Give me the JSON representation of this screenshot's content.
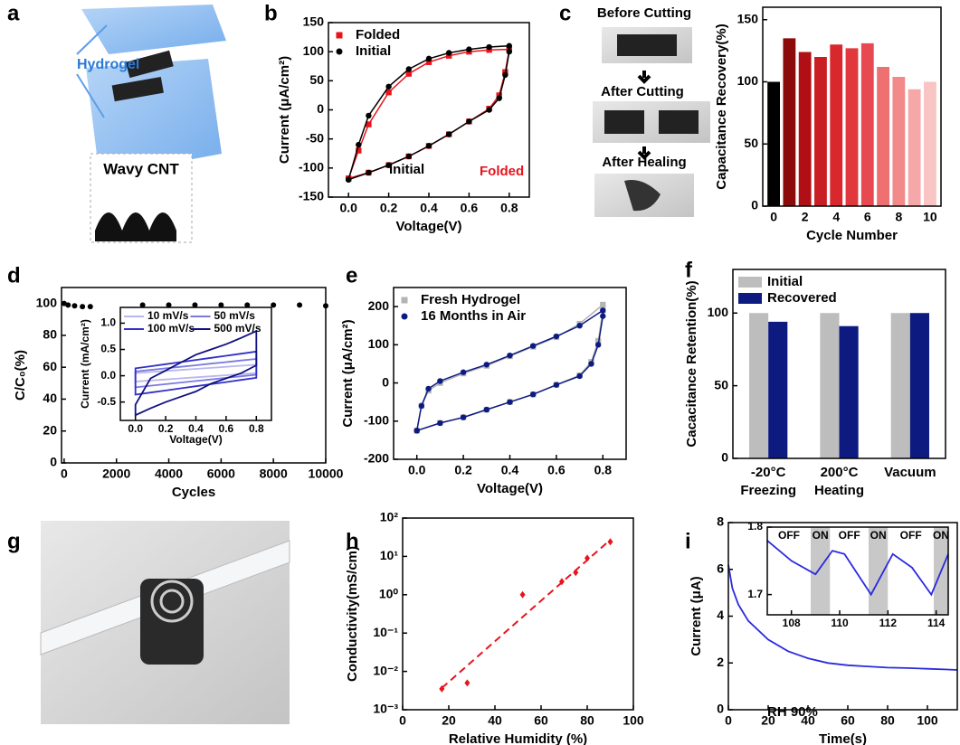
{
  "illustrations": {
    "a": {
      "label": "a",
      "texts": [
        "Hydrogel",
        "Wavy CNT"
      ]
    },
    "c": {
      "texts": [
        "Before Cutting",
        "After Cutting",
        "After Healing"
      ]
    },
    "g": {
      "label": "g"
    }
  },
  "chart_data": [
    {
      "type": "line",
      "label": "b",
      "xlabel": "Voltage(V)",
      "ylabel": "Current (μA/cm²)",
      "xlim": [
        -0.1,
        0.9
      ],
      "ylim": [
        -150,
        150
      ],
      "xticks": [
        {
          "value": 0,
          "label": "0.0"
        },
        0.2,
        0.4,
        0.6,
        0.8
      ],
      "yticks": [
        -150,
        -100,
        -50,
        0,
        50,
        100,
        150
      ],
      "legend": "upper left",
      "series": [
        {
          "name": "Folded",
          "color": "#e8141c",
          "marker": "square",
          "x": [
            0,
            0.05,
            0.1,
            0.2,
            0.3,
            0.4,
            0.5,
            0.6,
            0.7,
            0.8,
            0.8,
            0.78,
            0.75,
            0.7,
            0.6,
            0.5,
            0.4,
            0.3,
            0.2,
            0.1,
            0
          ],
          "values": [
            -118,
            -70,
            -25,
            30,
            62,
            82,
            93,
            100,
            103,
            104,
            104,
            65,
            25,
            2,
            -20,
            -42,
            -62,
            -80,
            -95,
            -108,
            -118
          ]
        },
        {
          "name": "Initial",
          "color": "#000000",
          "marker": "circle",
          "x": [
            0,
            0.05,
            0.1,
            0.2,
            0.3,
            0.4,
            0.5,
            0.6,
            0.7,
            0.8,
            0.8,
            0.78,
            0.75,
            0.7,
            0.6,
            0.5,
            0.4,
            0.3,
            0.2,
            0.1,
            0
          ],
          "values": [
            -120,
            -60,
            -10,
            40,
            70,
            88,
            98,
            104,
            108,
            110,
            100,
            60,
            20,
            0,
            -20,
            -42,
            -62,
            -80,
            -95,
            -108,
            -120
          ]
        }
      ],
      "annotations": [
        {
          "text": "Initial",
          "color": "#000000"
        },
        {
          "text": "Folded",
          "color": "#e8141c"
        }
      ]
    },
    {
      "type": "bar",
      "label": "c",
      "xlabel": "Cycle Number",
      "ylabel": "Capacitance Recovery(%)",
      "xlim": [
        -0.7,
        10.7
      ],
      "ylim": [
        0,
        160
      ],
      "xticks": [
        0,
        2,
        4,
        6,
        8,
        10
      ],
      "yticks": [
        0,
        50,
        100,
        150
      ],
      "x": [
        0,
        1,
        2,
        3,
        4,
        5,
        6,
        7,
        8,
        9,
        10
      ],
      "values": [
        100,
        135,
        124,
        120,
        130,
        127,
        131,
        112,
        104,
        94,
        100
      ],
      "colors": [
        "#000000",
        "#8b0a0a",
        "#b01015",
        "#c81e24",
        "#d8282e",
        "#e0383c",
        "#e84850",
        "#ee7070",
        "#f28a8a",
        "#f6a8a8",
        "#f9c4c4"
      ]
    },
    {
      "type": "scatter",
      "label": "d",
      "xlabel": "Cycles",
      "ylabel": "C/C₀(%)",
      "xlim": [
        -100,
        10000
      ],
      "ylim": [
        0,
        110
      ],
      "xticks": [
        0,
        2000,
        4000,
        6000,
        8000,
        10000
      ],
      "yticks": [
        0,
        20,
        40,
        60,
        80,
        100
      ],
      "series": [
        {
          "color": "#000000",
          "marker": "circle",
          "x": [
            0,
            150,
            400,
            700,
            1000,
            3000,
            4000,
            5000,
            6000,
            7000,
            8000,
            9000,
            10000
          ],
          "values": [
            100,
            99,
            98.5,
            98,
            98,
            99,
            99,
            99,
            99,
            99,
            99,
            99,
            98.5
          ]
        }
      ]
    },
    {
      "type": "line",
      "xlabel": "Voltage(V)",
      "ylabel": "Current (mA/cm²)",
      "closed": true,
      "xlim": [
        -0.1,
        0.9
      ],
      "ylim": [
        -0.85,
        1.3
      ],
      "xticks": [
        {
          "value": 0,
          "label": "0.0"
        },
        0.2,
        0.4,
        0.6,
        0.8
      ],
      "yticks": [
        -0.5,
        {
          "value": 0,
          "label": "0.0"
        },
        0.5,
        {
          "value": 1,
          "label": "1.0"
        }
      ],
      "legend": "top",
      "legend_columns": 2,
      "series": [
        {
          "name": "10 mV/s",
          "color": "#b8b8ee",
          "x": [
            0,
            0.1,
            0.2,
            0.3,
            0.4,
            0.5,
            0.6,
            0.7,
            0.8,
            0.8,
            0.7,
            0.6,
            0.5,
            0.4,
            0.3,
            0.2,
            0.1,
            0
          ],
          "values": [
            0.05,
            0.07,
            0.09,
            0.11,
            0.13,
            0.15,
            0.17,
            0.19,
            0.21,
            0.05,
            0.03,
            0.01,
            -0.01,
            -0.03,
            -0.05,
            -0.07,
            -0.09,
            -0.11
          ]
        },
        {
          "name": "50 mV/s",
          "color": "#7a7ae0",
          "x": [
            0,
            0.1,
            0.2,
            0.3,
            0.4,
            0.5,
            0.6,
            0.7,
            0.8,
            0.8,
            0.7,
            0.6,
            0.5,
            0.4,
            0.3,
            0.2,
            0.1,
            0
          ],
          "values": [
            0.08,
            0.11,
            0.14,
            0.17,
            0.2,
            0.23,
            0.26,
            0.29,
            0.32,
            0.02,
            -0.01,
            -0.04,
            -0.07,
            -0.1,
            -0.13,
            -0.16,
            -0.19,
            -0.22
          ]
        },
        {
          "name": "100 mV/s",
          "color": "#3030c8",
          "x": [
            0,
            0.1,
            0.2,
            0.3,
            0.4,
            0.5,
            0.6,
            0.7,
            0.8,
            0.8,
            0.7,
            0.6,
            0.5,
            0.4,
            0.3,
            0.2,
            0.1,
            0
          ],
          "values": [
            0.14,
            0.18,
            0.22,
            0.26,
            0.3,
            0.34,
            0.38,
            0.42,
            0.46,
            -0.04,
            -0.08,
            -0.12,
            -0.16,
            -0.2,
            -0.24,
            -0.28,
            -0.32,
            -0.36
          ]
        },
        {
          "name": "500 mV/s",
          "color": "#101080",
          "x": [
            0,
            0.1,
            0.2,
            0.3,
            0.4,
            0.5,
            0.6,
            0.7,
            0.8,
            0.8,
            0.7,
            0.6,
            0.5,
            0.4,
            0.3,
            0.2,
            0.1,
            0
          ],
          "values": [
            -0.55,
            -0.05,
            0.1,
            0.25,
            0.4,
            0.5,
            0.6,
            0.72,
            0.85,
            0.2,
            0.05,
            -0.05,
            -0.15,
            -0.3,
            -0.4,
            -0.5,
            -0.62,
            -0.75
          ]
        }
      ]
    },
    {
      "type": "line",
      "label": "e",
      "xlabel": "Voltage(V)",
      "ylabel": "Current (μA/cm²)",
      "xlim": [
        -0.1,
        0.9
      ],
      "ylim": [
        -200,
        250
      ],
      "xticks": [
        {
          "value": 0,
          "label": "0.0"
        },
        0.2,
        0.4,
        0.6,
        0.8
      ],
      "yticks": [
        -200,
        -100,
        0,
        100,
        200
      ],
      "legend": "upper left",
      "series": [
        {
          "name": "Fresh Hydrogel",
          "color": "#b4b4b4",
          "marker": "square",
          "x": [
            0,
            0.02,
            0.05,
            0.1,
            0.2,
            0.3,
            0.4,
            0.5,
            0.6,
            0.7,
            0.8,
            0.8,
            0.78,
            0.75,
            0.7,
            0.6,
            0.5,
            0.4,
            0.3,
            0.2,
            0.1,
            0
          ],
          "values": [
            -125,
            -60,
            -20,
            0,
            25,
            45,
            70,
            95,
            120,
            155,
            205,
            190,
            110,
            55,
            20,
            -5,
            -30,
            -50,
            -70,
            -90,
            -105,
            -125
          ]
        },
        {
          "name": "16 Months in Air",
          "color": "#0d1a80",
          "marker": "circle",
          "x": [
            0,
            0.02,
            0.05,
            0.1,
            0.2,
            0.3,
            0.4,
            0.5,
            0.6,
            0.7,
            0.8,
            0.8,
            0.78,
            0.75,
            0.7,
            0.6,
            0.5,
            0.4,
            0.3,
            0.2,
            0.1,
            0
          ],
          "values": [
            -125,
            -60,
            -15,
            5,
            28,
            48,
            72,
            97,
            122,
            150,
            190,
            175,
            100,
            50,
            18,
            -5,
            -30,
            -50,
            -70,
            -90,
            -105,
            -125
          ]
        }
      ]
    },
    {
      "type": "bar",
      "label": "f",
      "ylabel": "Cacacitance Retention(%)",
      "ylim": [
        0,
        130
      ],
      "yticks": [
        0,
        50,
        100
      ],
      "legend": "upper left",
      "categories": [
        [
          "-20°C",
          "Freezing"
        ],
        [
          "200°C",
          "Heating"
        ],
        [
          "Vacuum"
        ]
      ],
      "series": [
        {
          "name": "Initial",
          "color": "#bdbdbd",
          "values": [
            100,
            100,
            100
          ]
        },
        {
          "name": "Recovered",
          "color": "#0d1a80",
          "values": [
            94,
            91,
            100
          ]
        }
      ]
    },
    {
      "type": "scatter",
      "label": "h",
      "xlabel": "Relative Humidity (%)",
      "ylabel": "Conductivity(mS/cm)",
      "log": true,
      "xlim": [
        0,
        100
      ],
      "ylim": [
        0.001,
        100
      ],
      "xticks": [
        0,
        20,
        40,
        60,
        80,
        100
      ],
      "yticks": [
        {
          "value": 0.001,
          "label": "10⁻³"
        },
        {
          "value": 0.01,
          "label": "10⁻²"
        },
        {
          "value": 0.1,
          "label": "10⁻¹"
        },
        {
          "value": 1,
          "label": "10⁰"
        },
        {
          "value": 10,
          "label": "10¹"
        },
        {
          "value": 100,
          "label": "10²"
        }
      ],
      "series": [
        {
          "color": "#e8141c",
          "marker": "diamond",
          "x": [
            17,
            28,
            52,
            69,
            75,
            80,
            90
          ],
          "values": [
            0.0035,
            0.005,
            1.0,
            2.2,
            3.8,
            9,
            24
          ]
        },
        {
          "color": "#e8141c",
          "style": "dashed",
          "x": [
            17,
            90
          ],
          "values": [
            0.0037,
            27
          ]
        }
      ]
    },
    {
      "type": "line",
      "label": "i",
      "xlabel": "Time(s)",
      "ylabel": "Current (μA)",
      "xlim": [
        0,
        115
      ],
      "ylim": [
        0,
        8
      ],
      "xticks": [
        0,
        20,
        40,
        60,
        80,
        100
      ],
      "yticks": [
        0,
        2,
        4,
        6,
        8
      ],
      "series": [
        {
          "color": "#2a2ae0",
          "x": [
            0,
            2,
            5,
            10,
            20,
            30,
            40,
            50,
            60,
            70,
            80,
            90,
            100,
            110,
            115
          ],
          "values": [
            6.2,
            5.2,
            4.5,
            3.8,
            3.0,
            2.5,
            2.2,
            2.0,
            1.9,
            1.85,
            1.8,
            1.78,
            1.75,
            1.72,
            1.7
          ]
        }
      ],
      "annotations": [
        {
          "text": "RH 90%",
          "color": "#000000"
        }
      ]
    },
    {
      "type": "line",
      "xlim": [
        107,
        114.5
      ],
      "ylim": [
        1.67,
        1.8
      ],
      "xticks": [
        108,
        110,
        112,
        114
      ],
      "yticks": [
        1.7,
        1.8
      ],
      "bands": [
        {
          "label": "OFF",
          "x": [
            107,
            108.8
          ],
          "color": "#ffffff"
        },
        {
          "label": "ON",
          "x": [
            108.8,
            109.6
          ],
          "color": "#c8c8c8"
        },
        {
          "label": "OFF",
          "x": [
            109.6,
            111.2
          ],
          "color": "#ffffff"
        },
        {
          "label": "ON",
          "x": [
            111.2,
            112
          ],
          "color": "#c8c8c8"
        },
        {
          "label": "OFF",
          "x": [
            112,
            113.9
          ],
          "color": "#ffffff"
        },
        {
          "label": "ON",
          "x": [
            113.9,
            114.5
          ],
          "color": "#c8c8c8"
        }
      ],
      "series": [
        {
          "color": "#2a2ae0",
          "x": [
            107,
            108,
            109,
            109.7,
            110.2,
            111.3,
            112.2,
            113,
            113.8,
            114.5
          ],
          "values": [
            1.78,
            1.75,
            1.73,
            1.765,
            1.76,
            1.7,
            1.76,
            1.74,
            1.7,
            1.76
          ]
        }
      ]
    }
  ]
}
